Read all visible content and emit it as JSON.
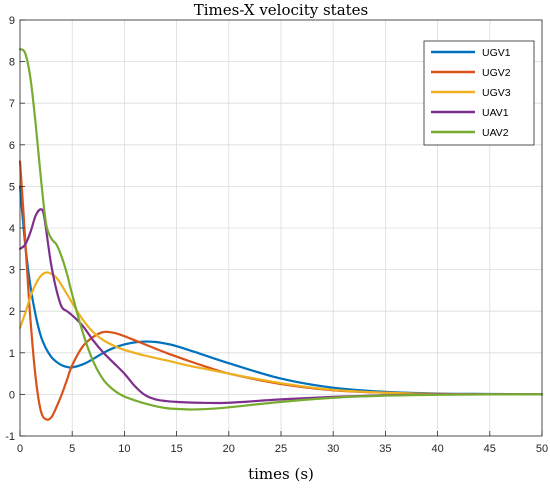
{
  "chart_data": {
    "type": "line",
    "title": "Times-X velocity states",
    "xlabel": "times (s)",
    "ylabel": "",
    "xlim": [
      0,
      50
    ],
    "ylim": [
      -1,
      9
    ],
    "xticks": [
      0,
      5,
      10,
      15,
      20,
      25,
      30,
      35,
      40,
      45,
      50
    ],
    "yticks": [
      -1,
      0,
      1,
      2,
      3,
      4,
      5,
      6,
      7,
      8,
      9
    ],
    "grid": true,
    "legend_position": "top-right",
    "series": [
      {
        "name": "UGV1",
        "color": "#0072BD",
        "x": [
          0,
          0.5,
          1,
          1.5,
          2,
          2.5,
          3,
          3.5,
          4,
          4.5,
          5,
          6,
          7,
          8,
          9,
          10,
          11,
          12,
          13,
          14,
          15,
          17,
          20,
          25,
          30,
          35,
          40,
          45,
          50
        ],
        "y": [
          5.0,
          3.6,
          2.6,
          1.9,
          1.4,
          1.1,
          0.9,
          0.78,
          0.7,
          0.66,
          0.65,
          0.72,
          0.85,
          1.0,
          1.12,
          1.2,
          1.25,
          1.27,
          1.26,
          1.22,
          1.16,
          1.0,
          0.75,
          0.38,
          0.16,
          0.06,
          0.02,
          0.01,
          0.0
        ]
      },
      {
        "name": "UGV2",
        "color": "#D95319",
        "x": [
          0,
          0.3,
          0.6,
          1,
          1.5,
          2,
          2.5,
          3,
          3.5,
          4,
          4.5,
          5,
          6,
          7,
          8,
          9,
          10,
          11,
          12,
          14,
          16,
          18,
          20,
          25,
          30,
          35,
          40,
          45,
          50
        ],
        "y": [
          5.6,
          4.5,
          3.3,
          1.8,
          0.4,
          -0.4,
          -0.6,
          -0.55,
          -0.3,
          0.0,
          0.35,
          0.7,
          1.15,
          1.38,
          1.5,
          1.48,
          1.4,
          1.3,
          1.2,
          1.0,
          0.82,
          0.65,
          0.5,
          0.25,
          0.1,
          0.04,
          0.01,
          0.0,
          0.0
        ]
      },
      {
        "name": "UGV3",
        "color": "#EDB120",
        "x": [
          0,
          0.5,
          1,
          1.5,
          2,
          2.5,
          3,
          3.5,
          4,
          5,
          6,
          7,
          8,
          9,
          10,
          12,
          14,
          16,
          18,
          20,
          25,
          30,
          35,
          40,
          45,
          50
        ],
        "y": [
          1.6,
          1.95,
          2.35,
          2.65,
          2.85,
          2.93,
          2.9,
          2.8,
          2.62,
          2.2,
          1.8,
          1.5,
          1.3,
          1.17,
          1.07,
          0.93,
          0.82,
          0.7,
          0.6,
          0.5,
          0.27,
          0.11,
          0.04,
          0.01,
          0.0,
          0.0
        ]
      },
      {
        "name": "UAV1",
        "color": "#7E2F8E",
        "x": [
          0,
          0.5,
          1,
          1.5,
          2,
          2.3,
          2.7,
          3,
          3.5,
          4,
          4.5,
          5,
          6,
          7,
          8,
          9,
          10,
          11,
          12,
          13,
          14,
          15,
          17,
          20,
          25,
          30,
          35,
          40,
          45,
          50
        ],
        "y": [
          3.5,
          3.6,
          3.9,
          4.3,
          4.45,
          4.3,
          3.6,
          3.1,
          2.5,
          2.1,
          2.0,
          1.9,
          1.65,
          1.3,
          1.0,
          0.75,
          0.5,
          0.2,
          -0.02,
          -0.12,
          -0.16,
          -0.18,
          -0.2,
          -0.2,
          -0.12,
          -0.06,
          -0.02,
          0.0,
          0.0,
          0.0
        ]
      },
      {
        "name": "UAV2",
        "color": "#77AC30",
        "x": [
          0,
          0.5,
          1,
          1.5,
          2,
          2.5,
          3,
          3.5,
          4,
          4.5,
          5,
          6,
          7,
          8,
          9,
          10,
          12,
          14,
          16,
          17,
          18,
          20,
          25,
          30,
          35,
          40,
          45,
          50
        ],
        "y": [
          8.3,
          8.2,
          7.6,
          6.5,
          5.2,
          4.1,
          3.75,
          3.6,
          3.3,
          2.9,
          2.4,
          1.5,
          0.8,
          0.35,
          0.1,
          -0.05,
          -0.22,
          -0.33,
          -0.36,
          -0.36,
          -0.35,
          -0.31,
          -0.18,
          -0.08,
          -0.03,
          -0.01,
          0.0,
          0.0
        ]
      }
    ]
  }
}
